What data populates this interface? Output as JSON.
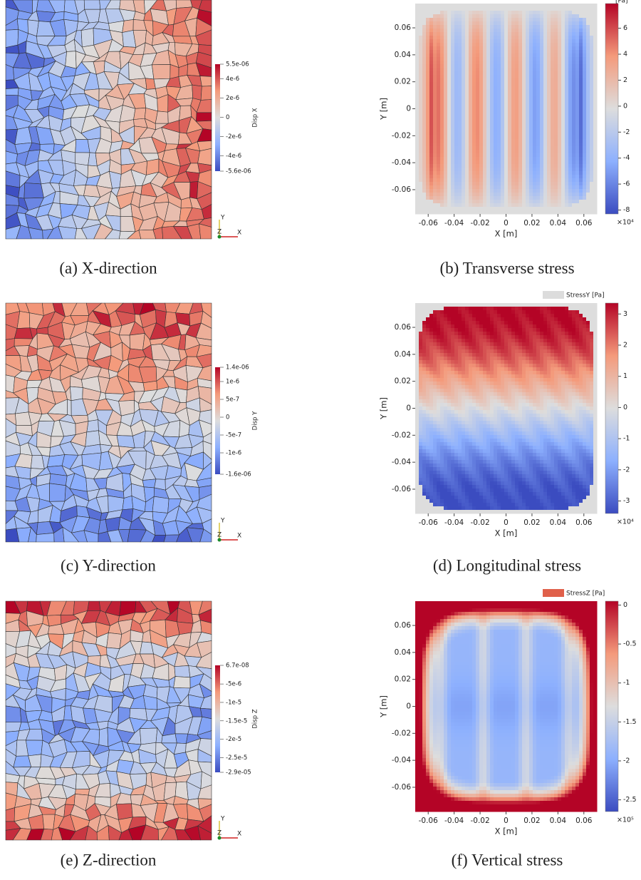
{
  "panels": [
    {
      "caption": "(a) X-direction",
      "triad": [
        "Y",
        "Z",
        "X"
      ],
      "colorbar": {
        "title": "Disp X",
        "lim": [
          -5.6e-06,
          5.5e-06
        ],
        "ticks": [
          {
            "value": 5.5e-06,
            "label": "5.5e-06"
          },
          {
            "value": 4e-06,
            "label": "4e-6"
          },
          {
            "value": 2e-06,
            "label": "2e-6"
          },
          0,
          {
            "value": -2e-06,
            "label": "-2e-6"
          },
          {
            "value": -4e-06,
            "label": "-4e-6"
          },
          {
            "value": -5.6e-06,
            "label": "-5.6e-06"
          }
        ]
      }
    },
    {
      "caption": "(b) Transverse stress",
      "legend": "[Pa]",
      "xlabel": "X [m]",
      "ylabel": "Y [m]",
      "xlim": [
        -0.07,
        0.07
      ],
      "ylim": [
        -0.078,
        0.078
      ],
      "xticks": [
        -0.06,
        -0.04,
        -0.02,
        0,
        0.02,
        0.04,
        0.06
      ],
      "yticks": [
        0.06,
        0.04,
        0.02,
        0,
        -0.02,
        -0.04,
        -0.06
      ],
      "colorbar": {
        "lim": [
          -8.3,
          7.9
        ],
        "ticks": [
          6,
          4,
          2,
          0,
          -2,
          -4,
          -6,
          -8
        ],
        "multiplier": "×10⁴"
      }
    },
    {
      "caption": "(c) Y-direction",
      "triad": [
        "Y",
        "Z",
        "X"
      ],
      "colorbar": {
        "title": "Disp Y",
        "lim": [
          -1.6e-06,
          1.4e-06
        ],
        "ticks": [
          {
            "value": 1.4e-06,
            "label": "1.4e-06"
          },
          {
            "value": 1e-06,
            "label": "1e-6"
          },
          5e-07,
          0,
          -5e-07,
          {
            "value": -1e-06,
            "label": "-1e-6"
          },
          {
            "value": -1.6e-06,
            "label": "-1.6e-06"
          }
        ]
      }
    },
    {
      "caption": "(d) Longitudinal stress",
      "legend": "StressY [Pa]",
      "legend_color": "#dcdcdc",
      "xlabel": "X [m]",
      "ylabel": "Y [m]",
      "xlim": [
        -0.07,
        0.07
      ],
      "ylim": [
        -0.078,
        0.078
      ],
      "xticks": [
        -0.06,
        -0.04,
        -0.02,
        0,
        0.02,
        0.04,
        0.06
      ],
      "yticks": [
        0.06,
        0.04,
        0.02,
        0,
        -0.02,
        -0.04,
        -0.06
      ],
      "colorbar": {
        "lim": [
          -3.4,
          3.35
        ],
        "ticks": [
          3,
          2,
          1,
          0,
          -1,
          -2,
          -3
        ],
        "multiplier": "×10⁴"
      }
    },
    {
      "caption": "(e) Z-direction",
      "triad": [
        "Y",
        "Z",
        "X"
      ],
      "colorbar": {
        "title": "Disp Z",
        "lim": [
          -2.9e-05,
          6.7e-08
        ],
        "ticks": [
          {
            "value": 6.7e-08,
            "label": "6.7e-08"
          },
          {
            "value": -5e-06,
            "label": "-5e-6"
          },
          {
            "value": -1e-05,
            "label": "-1e-5"
          },
          {
            "value": -1.5e-05,
            "label": "-1.5e-5"
          },
          {
            "value": -2e-05,
            "label": "-2e-5"
          },
          {
            "value": -2.5e-05,
            "label": "-2.5e-5"
          },
          {
            "value": -2.9e-05,
            "label": "-2.9e-05"
          }
        ]
      }
    },
    {
      "caption": "(f) Vertical stress",
      "legend": "StressZ [Pa]",
      "legend_color": "#e0604a",
      "xlabel": "X [m]",
      "ylabel": "Y [m]",
      "xlim": [
        -0.07,
        0.07
      ],
      "ylim": [
        -0.078,
        0.078
      ],
      "xticks": [
        -0.06,
        -0.04,
        -0.02,
        0,
        0.02,
        0.04,
        0.06
      ],
      "yticks": [
        0.06,
        0.04,
        0.02,
        0,
        -0.02,
        -0.04,
        -0.06
      ],
      "colorbar": {
        "lim": [
          -2.65,
          0.05
        ],
        "ticks": [
          0,
          -0.5,
          -1,
          -1.5,
          -2,
          -2.5
        ],
        "multiplier": "×10⁵"
      }
    }
  ]
}
